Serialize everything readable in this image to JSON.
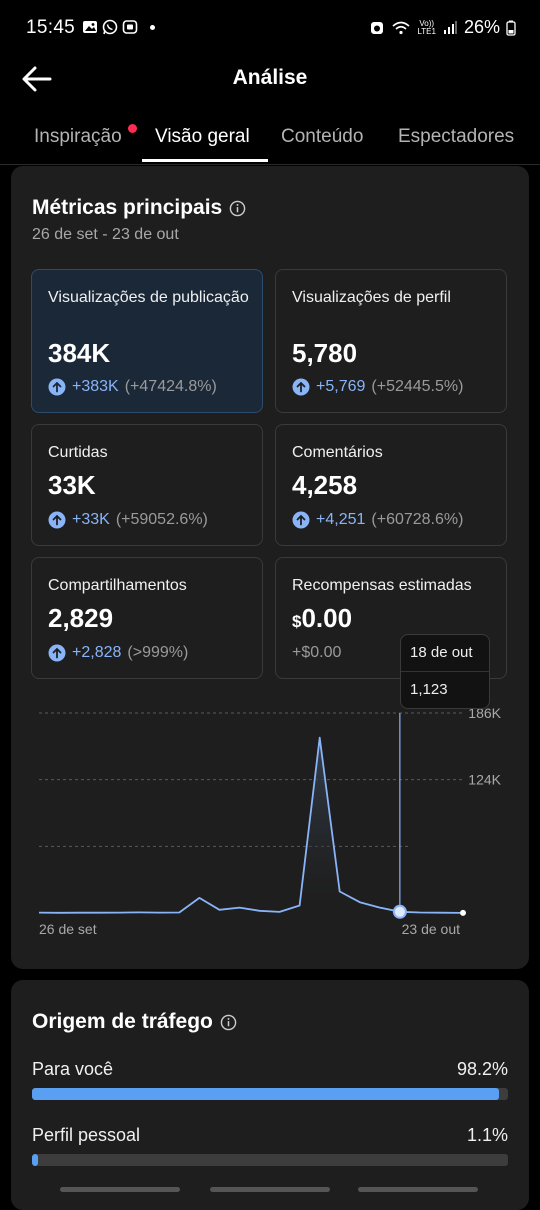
{
  "status_bar": {
    "time": "15:45",
    "battery": "26%",
    "network_lte": "LTE1",
    "network_volte": "Vo))"
  },
  "header": {
    "title": "Análise"
  },
  "tabs": [
    {
      "label": "Inspiração",
      "active": false,
      "has_notification_dot": true
    },
    {
      "label": "Visão geral",
      "active": true,
      "has_notification_dot": false
    },
    {
      "label": "Conteúdo",
      "active": false,
      "has_notification_dot": false
    },
    {
      "label": "Espectadores",
      "active": false,
      "has_notification_dot": false
    }
  ],
  "metrics": {
    "title": "Métricas principais",
    "date_range": "26 de set - 23 de out",
    "items": [
      {
        "label": "Visualizações de publicação",
        "value": "384K",
        "change": "+383K",
        "change_pct": "(+47424.8%)",
        "selected": true
      },
      {
        "label": "Visualizações de perfil",
        "value": "5,780",
        "change": "+5,769",
        "change_pct": "(+52445.5%)",
        "selected": false
      },
      {
        "label": "Curtidas",
        "value": "33K",
        "change": "+33K",
        "change_pct": "(+59052.6%)",
        "selected": false
      },
      {
        "label": "Comentários",
        "value": "4,258",
        "change": "+4,251",
        "change_pct": "(+60728.6%)",
        "selected": false
      },
      {
        "label": "Compartilhamentos",
        "value": "2,829",
        "change": "+2,828",
        "change_pct": "(>999%)",
        "selected": false
      },
      {
        "label": "Recompensas estimadas",
        "currency": "$",
        "value": "0.00",
        "change": "+$0.00",
        "change_pct": "",
        "selected": false
      }
    ]
  },
  "chart_data": {
    "type": "line",
    "x_start_label": "26 de set",
    "x_end_label": "23 de out",
    "y_ticks": [
      "186K",
      "124K"
    ],
    "ylim": [
      0,
      186000
    ],
    "grid": true,
    "values": [
      400,
      200,
      300,
      300,
      400,
      600,
      400,
      500,
      14000,
      3000,
      5000,
      2000,
      1000,
      7000,
      163000,
      20000,
      10000,
      5000,
      1123,
      500,
      300,
      100
    ],
    "highlight_index": 18,
    "tooltip": {
      "date": "18 de out",
      "value": "1,123"
    },
    "line_color": "#8ab4f8"
  },
  "traffic": {
    "title": "Origem de tráfego",
    "items": [
      {
        "label": "Para você",
        "value_label": "98.2%",
        "fraction": 0.982
      },
      {
        "label": "Perfil pessoal",
        "value_label": "1.1%",
        "fraction": 0.011
      }
    ]
  }
}
